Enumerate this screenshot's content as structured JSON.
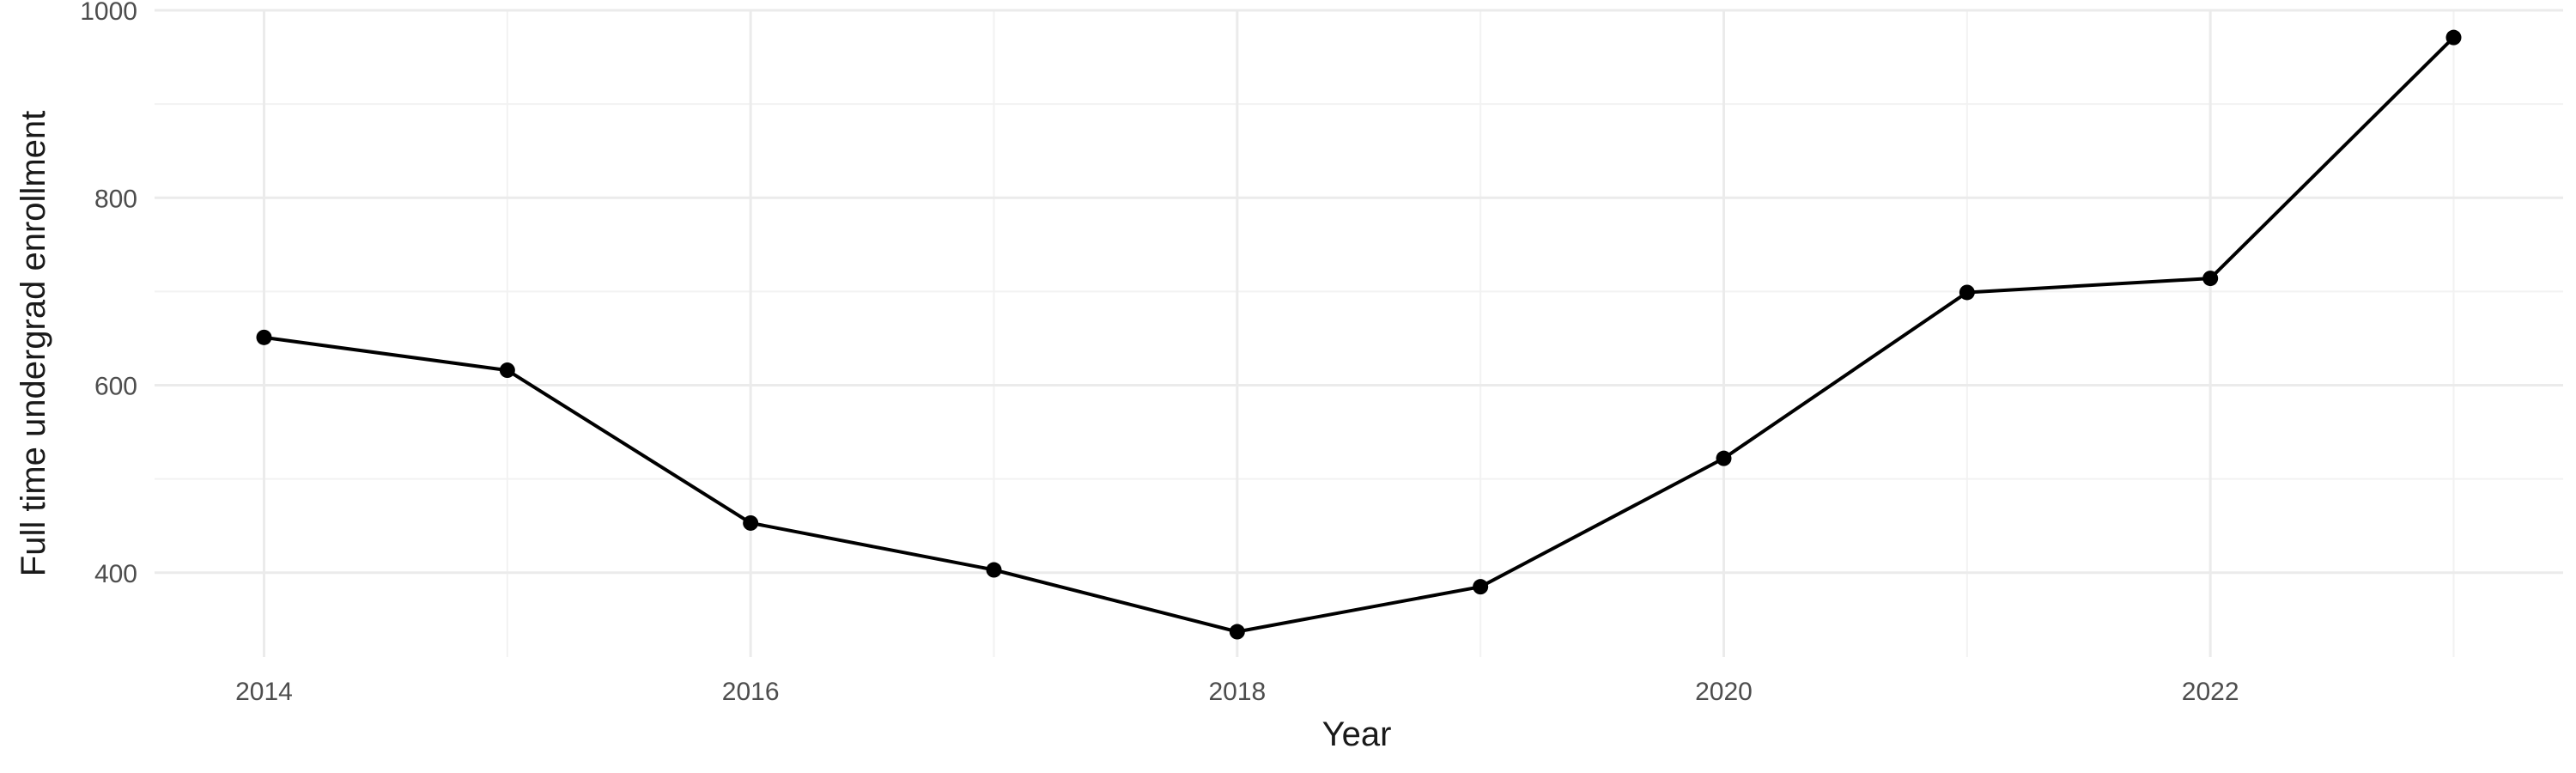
{
  "chart_data": {
    "type": "line",
    "title": "",
    "xlabel": "Year",
    "ylabel": "Full time undergrad enrollment",
    "x": [
      2014,
      2015,
      2016,
      2017,
      2018,
      2019,
      2020,
      2021,
      2022,
      2023
    ],
    "y": [
      651,
      616,
      453,
      403,
      337,
      385,
      522,
      699,
      714,
      971
    ],
    "xlim": [
      2013.55,
      2023.45
    ],
    "ylim": [
      310,
      1000
    ],
    "x_ticks": [
      2014,
      2016,
      2018,
      2020,
      2022
    ],
    "x_tick_labels": [
      "2014",
      "2016",
      "2018",
      "2020",
      "2022"
    ],
    "y_ticks": [
      400,
      600,
      800,
      1000
    ],
    "y_tick_labels": [
      "400",
      "600",
      "800",
      "1000"
    ],
    "grid": true,
    "legend": "none",
    "line_color": "#000000",
    "point_color": "#000000",
    "grid_color": "#ebebeb"
  }
}
